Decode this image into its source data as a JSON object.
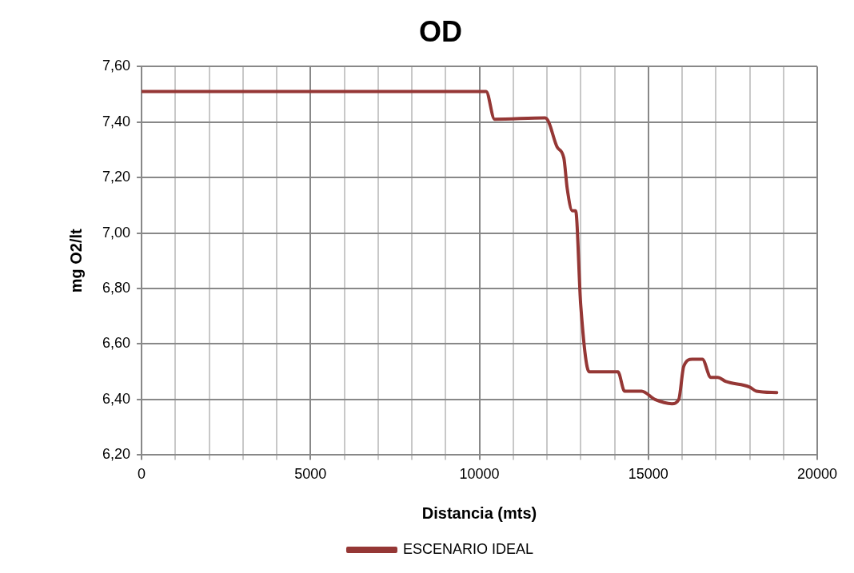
{
  "chart_data": {
    "type": "line",
    "title": "OD",
    "xlabel": "Distancia (mts)",
    "ylabel": "mg O2/lt",
    "x": [
      0,
      10000,
      10200,
      10450,
      11950,
      12050,
      12300,
      12500,
      12600,
      12750,
      12850,
      13000,
      13250,
      13500,
      14100,
      14300,
      14800,
      15200,
      15700,
      15900,
      16050,
      16300,
      16600,
      16850,
      17050,
      17300,
      18000,
      18200,
      18800
    ],
    "series": [
      {
        "name": "ESCENARIO IDEAL",
        "color": "#953735",
        "values": [
          7.51,
          7.51,
          7.51,
          7.41,
          7.415,
          7.4,
          7.31,
          7.27,
          7.16,
          7.08,
          7.08,
          6.74,
          6.5,
          6.5,
          6.5,
          6.43,
          6.43,
          6.4,
          6.385,
          6.4,
          6.52,
          6.545,
          6.545,
          6.48,
          6.48,
          6.465,
          6.445,
          6.43,
          6.425
        ]
      }
    ],
    "xlim": [
      0,
      20000
    ],
    "xticks": [
      0,
      {
        "value": 1000,
        "label": null
      },
      {
        "value": 2000,
        "label": null
      },
      {
        "value": 3000,
        "label": null
      },
      {
        "value": 4000,
        "label": null
      },
      5000,
      {
        "value": 6000,
        "label": null
      },
      {
        "value": 7000,
        "label": null
      },
      {
        "value": 8000,
        "label": null
      },
      {
        "value": 9000,
        "label": null
      },
      10000,
      {
        "value": 11000,
        "label": null
      },
      {
        "value": 12000,
        "label": null
      },
      {
        "value": 13000,
        "label": null
      },
      {
        "value": 14000,
        "label": null
      },
      15000,
      {
        "value": 16000,
        "label": null
      },
      {
        "value": 17000,
        "label": null
      },
      {
        "value": 18000,
        "label": null
      },
      {
        "value": 19000,
        "label": null
      },
      20000
    ],
    "ylim": [
      6.2,
      7.6
    ],
    "yticks": [
      {
        "value": 6.2,
        "label": "6,20"
      },
      {
        "value": 6.4,
        "label": "6,40"
      },
      {
        "value": 6.6,
        "label": "6,60"
      },
      {
        "value": 6.8,
        "label": "6,80"
      },
      {
        "value": 7.0,
        "label": "7,00"
      },
      {
        "value": 7.2,
        "label": "7,20"
      },
      {
        "value": 7.4,
        "label": "7,40"
      },
      {
        "value": 7.6,
        "label": "7,60"
      }
    ],
    "grid": true,
    "legend": "bottom",
    "marker": "none",
    "line_style": "solid"
  }
}
